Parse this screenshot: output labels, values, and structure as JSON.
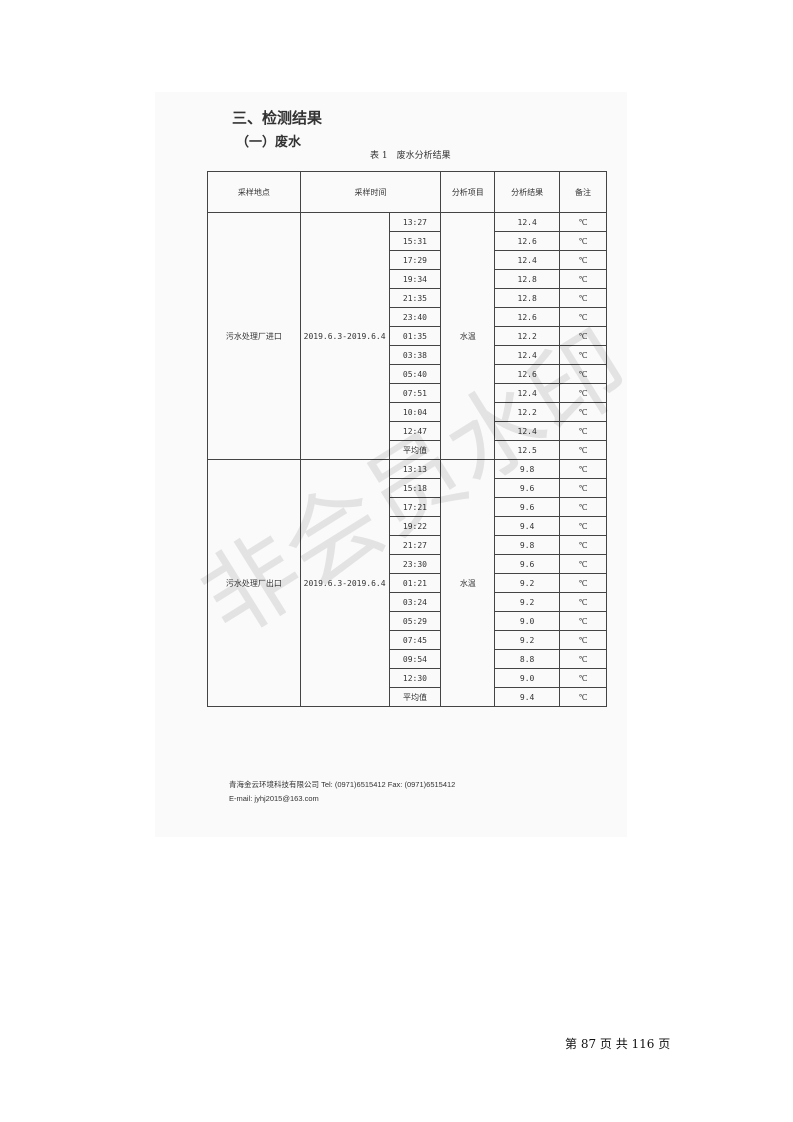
{
  "heading": "三、检测结果",
  "subheading": "（一）废水",
  "caption": "表 1　废水分析结果",
  "table": {
    "headers": [
      "采样地点",
      "采样时间",
      "分析项目",
      "分析结果",
      "备注"
    ],
    "groups": [
      {
        "site": "污水处理厂进口",
        "date": "2019.6.3-2019.6.4",
        "item": "水温",
        "rows": [
          [
            "13:27",
            "12.4"
          ],
          [
            "15:31",
            "12.6"
          ],
          [
            "17:29",
            "12.4"
          ],
          [
            "19:34",
            "12.8"
          ],
          [
            "21:35",
            "12.8"
          ],
          [
            "23:40",
            "12.6"
          ],
          [
            "01:35",
            "12.2"
          ],
          [
            "03:38",
            "12.4"
          ],
          [
            "05:40",
            "12.6"
          ],
          [
            "07:51",
            "12.4"
          ],
          [
            "10:04",
            "12.2"
          ],
          [
            "12:47",
            "12.4"
          ],
          [
            "平均值",
            "12.5"
          ]
        ]
      },
      {
        "site": "污水处理厂出口",
        "date": "2019.6.3-2019.6.4",
        "item": "水温",
        "rows": [
          [
            "13:13",
            "9.8"
          ],
          [
            "15:18",
            "9.6"
          ],
          [
            "17:21",
            "9.6"
          ],
          [
            "19:22",
            "9.4"
          ],
          [
            "21:27",
            "9.8"
          ],
          [
            "23:30",
            "9.6"
          ],
          [
            "01:21",
            "9.2"
          ],
          [
            "03:24",
            "9.2"
          ],
          [
            "05:29",
            "9.0"
          ],
          [
            "07:45",
            "9.2"
          ],
          [
            "09:54",
            "8.8"
          ],
          [
            "12:30",
            "9.0"
          ],
          [
            "平均值",
            "9.4"
          ]
        ]
      }
    ],
    "unit": "℃"
  },
  "watermark": "非会员水印",
  "footer": {
    "line1": "青海金云环境科技有限公司 Tel:  (0971)6515412   Fax:  (0971)6515412",
    "line2": "E-mail:  jyhj2015@163.com"
  },
  "page_number": "第 87 页 共 116 页"
}
